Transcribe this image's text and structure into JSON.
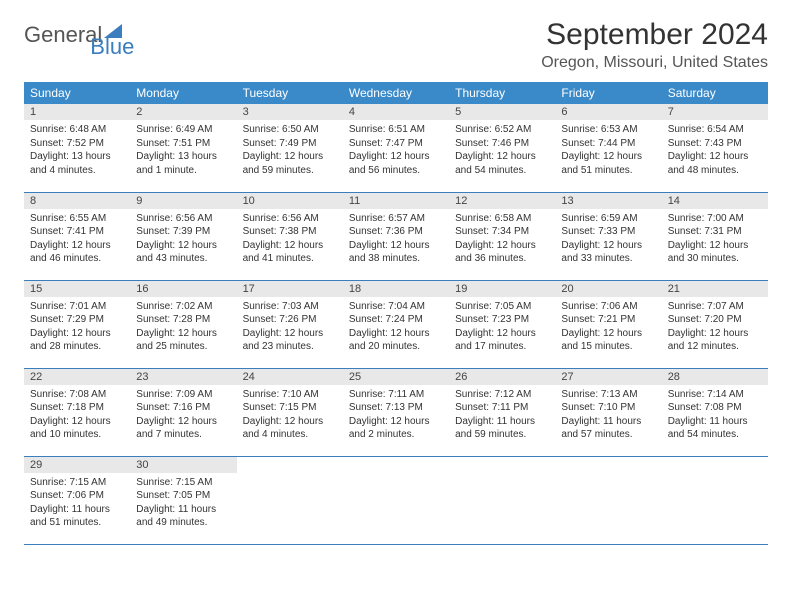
{
  "logo": {
    "text1": "General",
    "text2": "Blue"
  },
  "title": "September 2024",
  "location": "Oregon, Missouri, United States",
  "headers": [
    "Sunday",
    "Monday",
    "Tuesday",
    "Wednesday",
    "Thursday",
    "Friday",
    "Saturday"
  ],
  "header_bg": "#3a89c9",
  "accent_blue": "#3a7ebf",
  "daynum_bg": "#e8e8e8",
  "days": [
    {
      "n": "1",
      "sunrise": "6:48 AM",
      "sunset": "7:52 PM",
      "daylight": "13 hours and 4 minutes."
    },
    {
      "n": "2",
      "sunrise": "6:49 AM",
      "sunset": "7:51 PM",
      "daylight": "13 hours and 1 minute."
    },
    {
      "n": "3",
      "sunrise": "6:50 AM",
      "sunset": "7:49 PM",
      "daylight": "12 hours and 59 minutes."
    },
    {
      "n": "4",
      "sunrise": "6:51 AM",
      "sunset": "7:47 PM",
      "daylight": "12 hours and 56 minutes."
    },
    {
      "n": "5",
      "sunrise": "6:52 AM",
      "sunset": "7:46 PM",
      "daylight": "12 hours and 54 minutes."
    },
    {
      "n": "6",
      "sunrise": "6:53 AM",
      "sunset": "7:44 PM",
      "daylight": "12 hours and 51 minutes."
    },
    {
      "n": "7",
      "sunrise": "6:54 AM",
      "sunset": "7:43 PM",
      "daylight": "12 hours and 48 minutes."
    },
    {
      "n": "8",
      "sunrise": "6:55 AM",
      "sunset": "7:41 PM",
      "daylight": "12 hours and 46 minutes."
    },
    {
      "n": "9",
      "sunrise": "6:56 AM",
      "sunset": "7:39 PM",
      "daylight": "12 hours and 43 minutes."
    },
    {
      "n": "10",
      "sunrise": "6:56 AM",
      "sunset": "7:38 PM",
      "daylight": "12 hours and 41 minutes."
    },
    {
      "n": "11",
      "sunrise": "6:57 AM",
      "sunset": "7:36 PM",
      "daylight": "12 hours and 38 minutes."
    },
    {
      "n": "12",
      "sunrise": "6:58 AM",
      "sunset": "7:34 PM",
      "daylight": "12 hours and 36 minutes."
    },
    {
      "n": "13",
      "sunrise": "6:59 AM",
      "sunset": "7:33 PM",
      "daylight": "12 hours and 33 minutes."
    },
    {
      "n": "14",
      "sunrise": "7:00 AM",
      "sunset": "7:31 PM",
      "daylight": "12 hours and 30 minutes."
    },
    {
      "n": "15",
      "sunrise": "7:01 AM",
      "sunset": "7:29 PM",
      "daylight": "12 hours and 28 minutes."
    },
    {
      "n": "16",
      "sunrise": "7:02 AM",
      "sunset": "7:28 PM",
      "daylight": "12 hours and 25 minutes."
    },
    {
      "n": "17",
      "sunrise": "7:03 AM",
      "sunset": "7:26 PM",
      "daylight": "12 hours and 23 minutes."
    },
    {
      "n": "18",
      "sunrise": "7:04 AM",
      "sunset": "7:24 PM",
      "daylight": "12 hours and 20 minutes."
    },
    {
      "n": "19",
      "sunrise": "7:05 AM",
      "sunset": "7:23 PM",
      "daylight": "12 hours and 17 minutes."
    },
    {
      "n": "20",
      "sunrise": "7:06 AM",
      "sunset": "7:21 PM",
      "daylight": "12 hours and 15 minutes."
    },
    {
      "n": "21",
      "sunrise": "7:07 AM",
      "sunset": "7:20 PM",
      "daylight": "12 hours and 12 minutes."
    },
    {
      "n": "22",
      "sunrise": "7:08 AM",
      "sunset": "7:18 PM",
      "daylight": "12 hours and 10 minutes."
    },
    {
      "n": "23",
      "sunrise": "7:09 AM",
      "sunset": "7:16 PM",
      "daylight": "12 hours and 7 minutes."
    },
    {
      "n": "24",
      "sunrise": "7:10 AM",
      "sunset": "7:15 PM",
      "daylight": "12 hours and 4 minutes."
    },
    {
      "n": "25",
      "sunrise": "7:11 AM",
      "sunset": "7:13 PM",
      "daylight": "12 hours and 2 minutes."
    },
    {
      "n": "26",
      "sunrise": "7:12 AM",
      "sunset": "7:11 PM",
      "daylight": "11 hours and 59 minutes."
    },
    {
      "n": "27",
      "sunrise": "7:13 AM",
      "sunset": "7:10 PM",
      "daylight": "11 hours and 57 minutes."
    },
    {
      "n": "28",
      "sunrise": "7:14 AM",
      "sunset": "7:08 PM",
      "daylight": "11 hours and 54 minutes."
    },
    {
      "n": "29",
      "sunrise": "7:15 AM",
      "sunset": "7:06 PM",
      "daylight": "11 hours and 51 minutes."
    },
    {
      "n": "30",
      "sunrise": "7:15 AM",
      "sunset": "7:05 PM",
      "daylight": "11 hours and 49 minutes."
    }
  ],
  "labels": {
    "sunrise": "Sunrise:",
    "sunset": "Sunset:",
    "daylight": "Daylight:"
  }
}
